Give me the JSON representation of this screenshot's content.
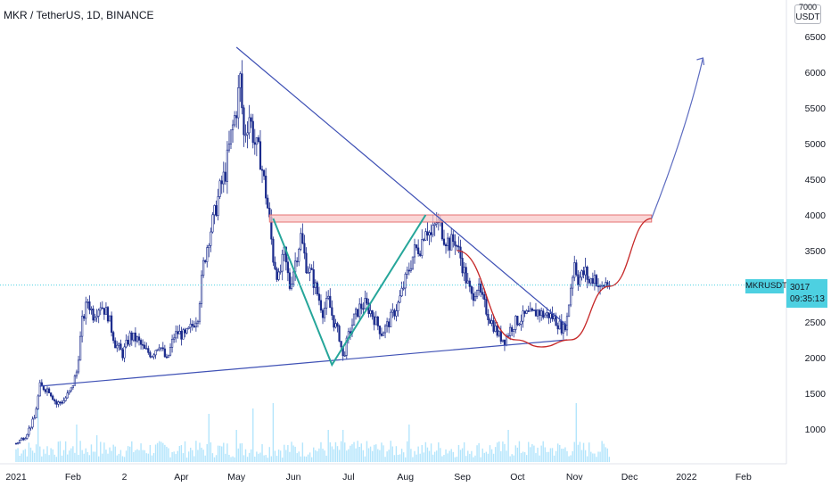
{
  "header": {
    "title": "MKR / TetherUS, 1D, BINANCE"
  },
  "price_scale": {
    "unit": "USDT",
    "top_partial_tick": "7000"
  },
  "last_price": {
    "symbol": "MKRUSDT",
    "price": "3017",
    "countdown": "09:35:13"
  },
  "colors": {
    "candle": "#1a2a8c",
    "volume": "#b3e5fc",
    "trendline": "#3f51b5",
    "zigzag": "#26a69a",
    "curve": "#c62828",
    "resistance_fill": "#f8c8c8",
    "resistance_border": "#e57373",
    "projection": "#5c6bc0",
    "price_line": "#4dd0e1"
  },
  "chart_data": {
    "type": "candlestick",
    "title": "MKR / TetherUS, 1D, BINANCE",
    "xlabel": "",
    "ylabel": "",
    "ylim": [
      750,
      7000
    ],
    "y_ticks": [
      1000,
      1500,
      2000,
      2500,
      3000,
      3500,
      4000,
      4500,
      5000,
      5500,
      6000,
      6500
    ],
    "x_ticks": [
      "2021",
      "Feb",
      "2",
      "Apr",
      "May",
      "Jun",
      "Jul",
      "Aug",
      "Sep",
      "Oct",
      "Nov",
      "Dec",
      "2022",
      "Feb"
    ],
    "x_tick_days": [
      0,
      31,
      59,
      90,
      120,
      151,
      181,
      212,
      243,
      273,
      304,
      334,
      365,
      396
    ],
    "grid": false,
    "last_price": 3017,
    "price_path": [
      [
        0,
        800
      ],
      [
        5,
        900
      ],
      [
        10,
        1150
      ],
      [
        13,
        1600
      ],
      [
        18,
        1550
      ],
      [
        22,
        1350
      ],
      [
        26,
        1400
      ],
      [
        30,
        1550
      ],
      [
        33,
        1800
      ],
      [
        36,
        2500
      ],
      [
        39,
        2800
      ],
      [
        42,
        2600
      ],
      [
        46,
        2750
      ],
      [
        50,
        2600
      ],
      [
        54,
        2200
      ],
      [
        58,
        2050
      ],
      [
        62,
        2300
      ],
      [
        66,
        2250
      ],
      [
        70,
        2100
      ],
      [
        74,
        2050
      ],
      [
        78,
        2200
      ],
      [
        82,
        1950
      ],
      [
        86,
        2300
      ],
      [
        88,
        2350
      ],
      [
        92,
        2300
      ],
      [
        96,
        2450
      ],
      [
        99,
        2600
      ],
      [
        102,
        3300
      ],
      [
        105,
        3700
      ],
      [
        108,
        4000
      ],
      [
        111,
        4350
      ],
      [
        114,
        4600
      ],
      [
        117,
        5100
      ],
      [
        120,
        5500
      ],
      [
        122,
        5900
      ],
      [
        124,
        5100
      ],
      [
        127,
        5400
      ],
      [
        130,
        5000
      ],
      [
        133,
        4800
      ],
      [
        136,
        4300
      ],
      [
        138,
        3900
      ],
      [
        140,
        3400
      ],
      [
        143,
        3100
      ],
      [
        146,
        3450
      ],
      [
        149,
        3000
      ],
      [
        152,
        3350
      ],
      [
        155,
        3700
      ],
      [
        158,
        3300
      ],
      [
        161,
        3150
      ],
      [
        164,
        2900
      ],
      [
        167,
        2650
      ],
      [
        170,
        2800
      ],
      [
        173,
        2500
      ],
      [
        176,
        2300
      ],
      [
        178,
        2000
      ],
      [
        181,
        2300
      ],
      [
        184,
        2550
      ],
      [
        187,
        2700
      ],
      [
        190,
        2750
      ],
      [
        193,
        2650
      ],
      [
        196,
        2500
      ],
      [
        199,
        2350
      ],
      [
        202,
        2450
      ],
      [
        205,
        2600
      ],
      [
        208,
        2750
      ],
      [
        211,
        3000
      ],
      [
        214,
        3250
      ],
      [
        217,
        3500
      ],
      [
        220,
        3550
      ],
      [
        223,
        3850
      ],
      [
        226,
        3700
      ],
      [
        229,
        3900
      ],
      [
        231,
        3850
      ],
      [
        233,
        3700
      ],
      [
        236,
        3600
      ],
      [
        239,
        3650
      ],
      [
        242,
        3400
      ],
      [
        245,
        3100
      ],
      [
        248,
        2850
      ],
      [
        251,
        3000
      ],
      [
        254,
        2800
      ],
      [
        257,
        2600
      ],
      [
        260,
        2450
      ],
      [
        263,
        2300
      ],
      [
        266,
        2250
      ],
      [
        269,
        2400
      ],
      [
        272,
        2500
      ],
      [
        275,
        2550
      ],
      [
        278,
        2600
      ],
      [
        281,
        2600
      ],
      [
        284,
        2650
      ],
      [
        287,
        2600
      ],
      [
        290,
        2600
      ],
      [
        293,
        2550
      ],
      [
        296,
        2450
      ],
      [
        298,
        2400
      ],
      [
        300,
        2550
      ],
      [
        302,
        3000
      ],
      [
        304,
        3350
      ],
      [
        306,
        3100
      ],
      [
        308,
        3150
      ],
      [
        310,
        3200
      ],
      [
        312,
        3050
      ],
      [
        315,
        3150
      ],
      [
        318,
        2950
      ],
      [
        321,
        3050
      ],
      [
        323,
        3017
      ]
    ],
    "volume_spikes": [
      [
        12,
        0.55
      ],
      [
        33,
        0.35
      ],
      [
        44,
        0.25
      ],
      [
        105,
        0.45
      ],
      [
        120,
        0.3
      ],
      [
        129,
        0.5
      ],
      [
        140,
        0.55
      ],
      [
        170,
        0.3
      ],
      [
        178,
        0.3
      ],
      [
        214,
        0.35
      ],
      [
        268,
        0.3
      ],
      [
        305,
        0.55
      ]
    ],
    "annotations": {
      "resistance_zone": {
        "from_day": 138,
        "to_day": 346,
        "low": 3900,
        "high": 4000
      },
      "descending_trendline": [
        [
          120,
          6350
        ],
        [
          300,
          2450
        ]
      ],
      "ascending_trendline": [
        [
          13,
          1600
        ],
        [
          300,
          2250
        ]
      ],
      "zigzag": [
        [
          140,
          3950
        ],
        [
          172,
          1900
        ],
        [
          223,
          4000
        ]
      ],
      "rounded_bottom_curve": [
        [
          240,
          3500
        ],
        [
          272,
          2250
        ],
        [
          286,
          2150
        ],
        [
          302,
          2250
        ],
        [
          323,
          3000
        ],
        [
          346,
          3950
        ]
      ],
      "projection_arrow": [
        [
          346,
          3950
        ],
        [
          365,
          5200
        ],
        [
          374,
          6200
        ]
      ]
    }
  }
}
